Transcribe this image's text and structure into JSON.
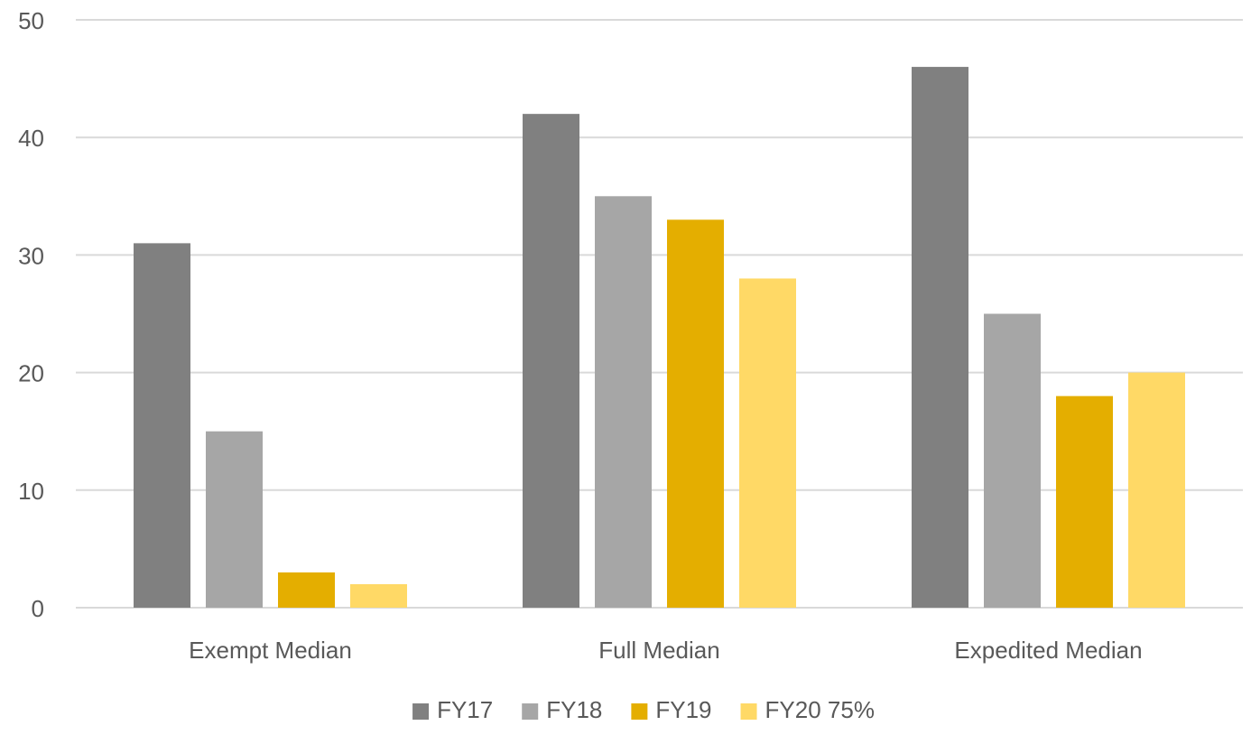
{
  "chart_data": {
    "type": "bar",
    "title": "",
    "xlabel": "",
    "ylabel": "",
    "ylim": [
      0,
      50
    ],
    "yticks": [
      0,
      10,
      20,
      30,
      40,
      50
    ],
    "grid": true,
    "legend_position": "bottom",
    "categories": [
      "Exempt Median",
      "Full Median",
      "Expedited Median"
    ],
    "series": [
      {
        "name": "FY17",
        "color": "#808080",
        "values": [
          31,
          42,
          46
        ]
      },
      {
        "name": "FY18",
        "color": "#a6a6a6",
        "values": [
          15,
          35,
          25
        ]
      },
      {
        "name": "FY19",
        "color": "#e4ae00",
        "values": [
          3,
          33,
          18
        ]
      },
      {
        "name": "FY20 75%",
        "color": "#ffd966",
        "values": [
          2,
          28,
          20
        ]
      }
    ],
    "colors": {
      "gridline": "#d9d9d9",
      "text": "#595959"
    }
  }
}
